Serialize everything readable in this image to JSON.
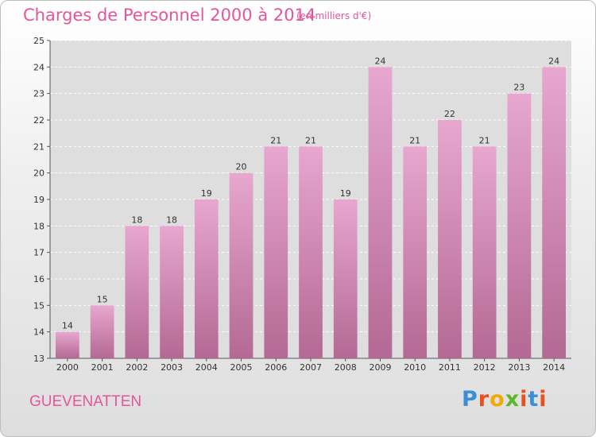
{
  "header": {
    "title": "Charges de Personnel 2000 à 2014",
    "subtitle": "(en milliers d'€)"
  },
  "footer": {
    "town": "GUEVENATTEN",
    "logo": {
      "text": "Proxiti",
      "letter_colors": [
        "#3a8fd6",
        "#e8501e",
        "#f2a900",
        "#5cb82a",
        "#e8501e",
        "#3a8fd6",
        "#e8501e"
      ]
    }
  },
  "colors": {
    "bar_top": "#e7a7cf",
    "bar_bottom": "#b36993",
    "plot_bg": "#dedede",
    "grid": "#ffffff"
  },
  "chart_data": {
    "type": "bar",
    "title": "Charges de Personnel 2000 à 2014",
    "subtitle": "(en milliers d'€)",
    "categories": [
      "2000",
      "2001",
      "2002",
      "2003",
      "2004",
      "2005",
      "2006",
      "2007",
      "2008",
      "2009",
      "2010",
      "2011",
      "2012",
      "2013",
      "2014"
    ],
    "values": [
      14,
      15,
      18,
      18,
      19,
      20,
      21,
      21,
      19,
      24,
      21,
      22,
      21,
      23,
      24
    ],
    "yticks": [
      "13",
      "14",
      "15",
      "16",
      "17",
      "18",
      "19",
      "20",
      "21",
      "22",
      "23",
      "24",
      "25"
    ],
    "ylim": [
      13,
      25
    ],
    "grid": true
  }
}
